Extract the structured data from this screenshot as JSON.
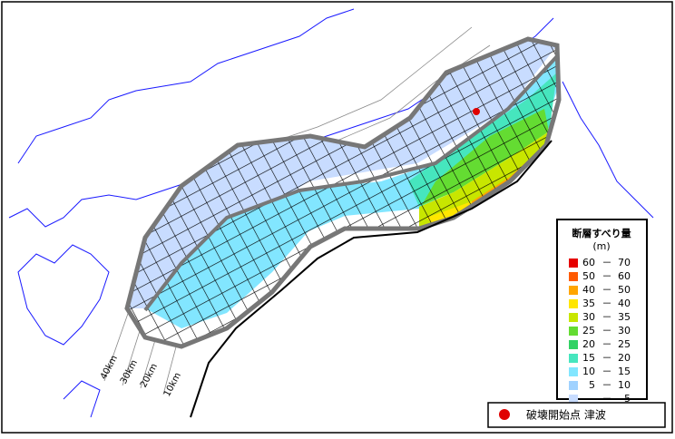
{
  "legend": {
    "title": "断層すべり量",
    "unit": "(m)",
    "separator": "－",
    "items": [
      {
        "min": 60,
        "max": 70,
        "color": "#e60000"
      },
      {
        "min": 50,
        "max": 60,
        "color": "#ff5a00"
      },
      {
        "min": 40,
        "max": 50,
        "color": "#ffa500"
      },
      {
        "min": 35,
        "max": 40,
        "color": "#ffe600"
      },
      {
        "min": 30,
        "max": 35,
        "color": "#c8e600"
      },
      {
        "min": 25,
        "max": 30,
        "color": "#64dc32"
      },
      {
        "min": 20,
        "max": 25,
        "color": "#32d264"
      },
      {
        "min": 15,
        "max": 20,
        "color": "#46e6be"
      },
      {
        "min": 10,
        "max": 15,
        "color": "#82e6ff"
      },
      {
        "min": 5,
        "max": 10,
        "color": "#a0d2ff"
      },
      {
        "min": null,
        "max": 5,
        "color": "#c8dcff"
      }
    ]
  },
  "depth_labels": [
    "40km",
    "30km",
    "20km",
    "10km"
  ],
  "marker_legend": {
    "label": "破壊開始点 津波"
  }
}
